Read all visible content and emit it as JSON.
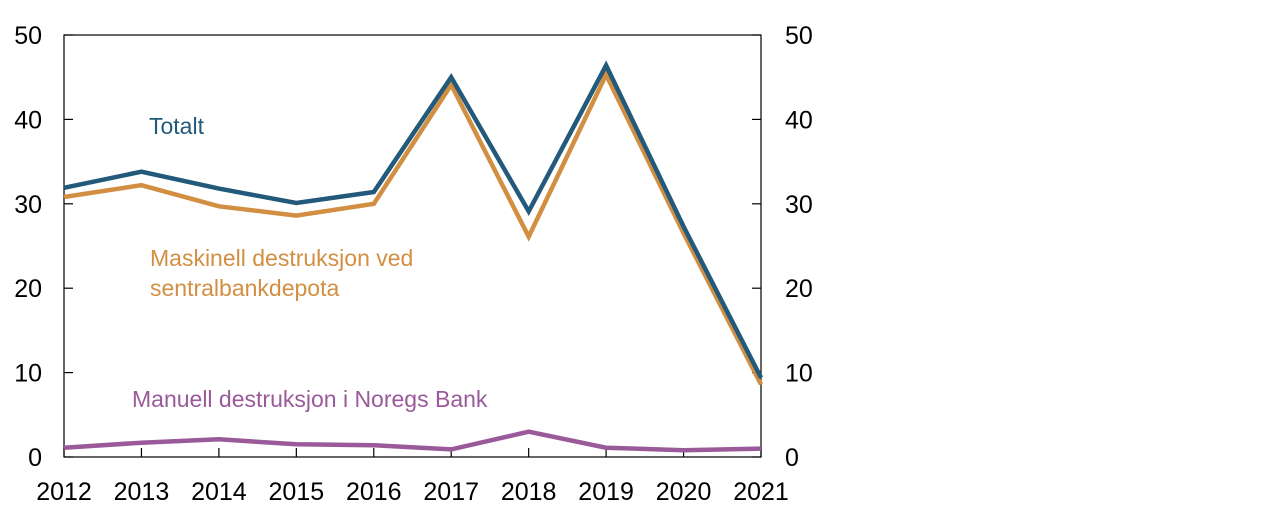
{
  "chart_data": {
    "type": "line",
    "title": "",
    "xlabel": "",
    "ylabel": "",
    "x": [
      2012,
      2013,
      2014,
      2015,
      2016,
      2017,
      2018,
      2019,
      2020,
      2021
    ],
    "x_tick_labels": [
      "2012",
      "2013",
      "2014",
      "2015",
      "2016",
      "2017",
      "2018",
      "2019",
      "2020",
      "2021"
    ],
    "ylim": [
      0,
      50
    ],
    "y_ticks": [
      0,
      10,
      20,
      30,
      40,
      50
    ],
    "y_tick_labels": [
      "0",
      "10",
      "20",
      "30",
      "40",
      "50"
    ],
    "right_axis_mirrors_left": true,
    "grid": false,
    "legend": "inline labels",
    "series": [
      {
        "name": "Totalt",
        "color": "#23597a",
        "values": [
          31.9,
          33.8,
          31.8,
          30.1,
          31.4,
          45.0,
          29.1,
          46.4,
          27.3,
          9.4
        ]
      },
      {
        "name_lines": [
          "Maskinell destruksjon ved",
          "sentralbankdepota"
        ],
        "color": "#d28f42",
        "values": [
          30.8,
          32.2,
          29.7,
          28.6,
          30.0,
          44.1,
          26.1,
          45.3,
          26.5,
          8.6
        ]
      },
      {
        "name": "Manuell destruksjon i Noregs Bank",
        "color": "#9a5a9a",
        "values": [
          1.1,
          1.7,
          2.1,
          1.5,
          1.4,
          0.9,
          3.0,
          1.1,
          0.8,
          1.0
        ]
      }
    ]
  }
}
